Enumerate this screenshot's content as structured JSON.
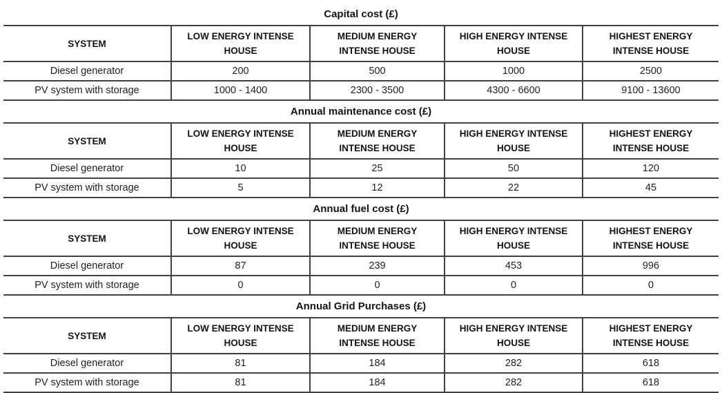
{
  "styles": {
    "background": "#ffffff",
    "border_color": "#404040",
    "text_color": "#1f1f1f"
  },
  "column_headers": [
    {
      "lines": [
        "SYSTEM"
      ]
    },
    {
      "lines": [
        "LOW ENERGY INTENSE",
        "HOUSE"
      ]
    },
    {
      "lines": [
        "MEDIUM ENERGY",
        "INTENSE HOUSE"
      ]
    },
    {
      "lines": [
        "HIGH ENERGY INTENSE",
        "HOUSE"
      ]
    },
    {
      "lines": [
        "HIGHEST ENERGY",
        "INTENSE HOUSE"
      ]
    }
  ],
  "tables": [
    {
      "title": "Capital cost (£)",
      "rows": [
        {
          "label": "Diesel generator",
          "values": [
            "200",
            "500",
            "1000",
            "2500"
          ]
        },
        {
          "label": "PV system with storage",
          "values": [
            "1000 - 1400",
            "2300 - 3500",
            "4300 - 6600",
            "9100 - 13600"
          ]
        }
      ]
    },
    {
      "title": "Annual maintenance cost (£)",
      "rows": [
        {
          "label": "Diesel generator",
          "values": [
            "10",
            "25",
            "50",
            "120"
          ]
        },
        {
          "label": "PV system with storage",
          "values": [
            "5",
            "12",
            "22",
            "45"
          ]
        }
      ]
    },
    {
      "title": "Annual fuel cost (£)",
      "rows": [
        {
          "label": "Diesel generator",
          "values": [
            "87",
            "239",
            "453",
            "996"
          ]
        },
        {
          "label": "PV system with storage",
          "values": [
            "0",
            "0",
            "0",
            "0"
          ]
        }
      ]
    },
    {
      "title": "Annual Grid Purchases (£)",
      "rows": [
        {
          "label": "Diesel generator",
          "values": [
            "81",
            "184",
            "282",
            "618"
          ]
        },
        {
          "label": "PV system with storage",
          "values": [
            "81",
            "184",
            "282",
            "618"
          ]
        }
      ]
    }
  ]
}
